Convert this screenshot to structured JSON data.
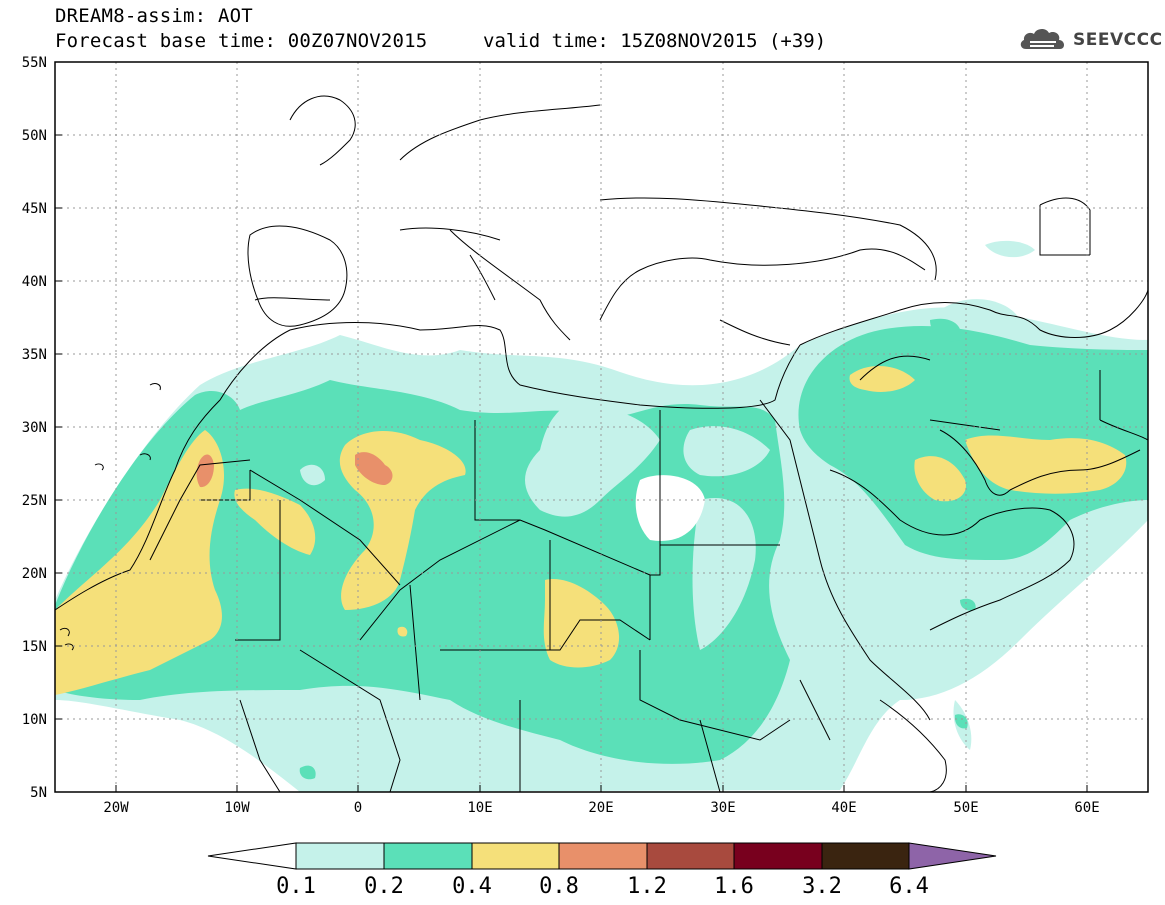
{
  "title": {
    "line1": "DREAM8-assim: AOT",
    "line2": "Forecast base time: 00Z07NOV2015",
    "valid": "valid time: 15Z08NOV2015 (+39)"
  },
  "logo": {
    "icon": "cloud-logo-icon",
    "text": "SEEVCCC"
  },
  "map": {
    "projection": "lat-lon",
    "lon_range": [
      -25,
      65
    ],
    "lat_range": [
      5,
      55
    ],
    "lat_ticks": [
      "5N",
      "10N",
      "15N",
      "20N",
      "25N",
      "30N",
      "35N",
      "40N",
      "45N",
      "50N",
      "55N"
    ],
    "lon_ticks": [
      "20W",
      "10W",
      "0",
      "10E",
      "20E",
      "30E",
      "40E",
      "50E",
      "60E"
    ],
    "grid": true
  },
  "colorbar": {
    "labels": [
      "0.1",
      "0.2",
      "0.4",
      "0.8",
      "1.2",
      "1.6",
      "3.2",
      "6.4"
    ],
    "colors": [
      "#c5f2ea",
      "#5be0b8",
      "#f5e07a",
      "#e8906a",
      "#a84a3e",
      "#78001e",
      "#3a2410",
      "#8e64a8"
    ],
    "under_color": "#ffffff"
  },
  "shading_colors": {
    "light": "#c5f2ea",
    "green": "#5be0b8",
    "yellow": "#f5e07a",
    "orange": "#e8906a"
  }
}
